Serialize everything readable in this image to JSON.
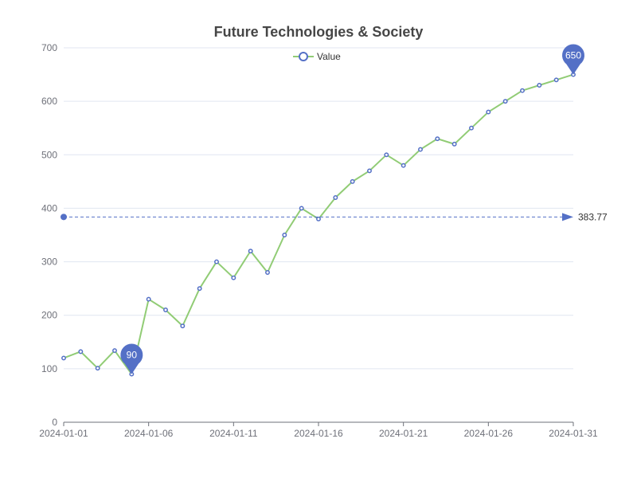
{
  "chart_data": {
    "type": "line",
    "title": "Future Technologies & Society",
    "x": [
      "2024-01-01",
      "2024-01-02",
      "2024-01-03",
      "2024-01-04",
      "2024-01-05",
      "2024-01-06",
      "2024-01-07",
      "2024-01-08",
      "2024-01-09",
      "2024-01-10",
      "2024-01-11",
      "2024-01-12",
      "2024-01-13",
      "2024-01-14",
      "2024-01-15",
      "2024-01-16",
      "2024-01-17",
      "2024-01-18",
      "2024-01-19",
      "2024-01-20",
      "2024-01-21",
      "2024-01-22",
      "2024-01-23",
      "2024-01-24",
      "2024-01-25",
      "2024-01-26",
      "2024-01-27",
      "2024-01-28",
      "2024-01-29",
      "2024-01-30",
      "2024-01-31"
    ],
    "series": [
      {
        "name": "Value",
        "values": [
          120,
          132,
          101,
          134,
          90,
          230,
          210,
          180,
          250,
          300,
          270,
          320,
          280,
          350,
          400,
          380,
          420,
          450,
          470,
          500,
          480,
          510,
          530,
          520,
          550,
          580,
          600,
          620,
          630,
          640,
          650
        ]
      }
    ],
    "x_tick_labels": [
      "2024-01-01",
      "2024-01-06",
      "2024-01-11",
      "2024-01-16",
      "2024-01-21",
      "2024-01-26",
      "2024-01-31"
    ],
    "y_tick_labels": [
      "0",
      "100",
      "200",
      "300",
      "400",
      "500",
      "600",
      "700"
    ],
    "ylim": [
      0,
      700
    ],
    "xlabel": "",
    "ylabel": "",
    "grid": true,
    "legend_position": "top-center",
    "mark_points": [
      {
        "label": "90",
        "x": "2024-01-05",
        "value": 90
      },
      {
        "label": "650",
        "x": "2024-01-31",
        "value": 650
      }
    ],
    "mark_line": {
      "type": "average",
      "value": 383.77,
      "label": "383.77"
    },
    "colors": {
      "line": "#91cc75",
      "point": "#5470c6",
      "marker": "#5470c6",
      "mark_line": "#5470c6",
      "grid": "#e0e6f1",
      "axis": "#6e7079"
    }
  }
}
